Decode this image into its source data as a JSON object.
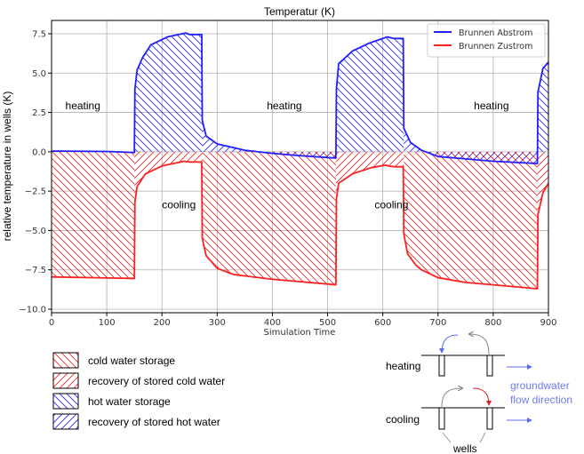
{
  "chart_data": {
    "type": "line",
    "title": "Temperatur (K)",
    "xlabel": "Simulation Time",
    "ylabel": "relative temperature in wells (K)",
    "xlim": [
      0,
      900
    ],
    "ylim": [
      -10,
      8.2
    ],
    "xticks": [
      0,
      100,
      200,
      300,
      400,
      500,
      600,
      700,
      800,
      900
    ],
    "yticks": [
      -10.0,
      -7.5,
      -5.0,
      -2.5,
      0.0,
      2.5,
      5.0,
      7.5
    ],
    "ytick_labels": [
      "−10.0",
      "−7.5",
      "−5.0",
      "−2.5",
      "0.0",
      "2.5",
      "5.0",
      "7.5"
    ],
    "grid": true,
    "legend_position": "top-right",
    "series": [
      {
        "name": "Brunnen Abstrom",
        "color": "#1f1fff",
        "x": [
          0,
          100,
          150,
          151,
          155,
          165,
          180,
          210,
          243,
          250,
          272,
          273,
          280,
          300,
          350,
          400,
          450,
          515,
          516,
          520,
          545,
          575,
          608,
          620,
          637,
          638,
          650,
          670,
          700,
          800,
          880,
          881,
          890,
          900
        ],
        "y": [
          0.05,
          0.02,
          -0.05,
          4.0,
          5.2,
          6.0,
          6.8,
          7.3,
          7.55,
          7.45,
          7.45,
          2.0,
          1.0,
          0.5,
          0.1,
          -0.1,
          -0.25,
          -0.4,
          4.0,
          5.6,
          6.4,
          6.9,
          7.3,
          7.2,
          7.2,
          1.5,
          0.6,
          0.1,
          -0.3,
          -0.6,
          -0.75,
          3.8,
          5.3,
          5.7
        ]
      },
      {
        "name": "Brunnen Zustrom",
        "color": "#ff2020",
        "x": [
          0,
          150,
          151,
          155,
          170,
          200,
          240,
          250,
          272,
          273,
          280,
          300,
          330,
          400,
          450,
          515,
          516,
          520,
          545,
          580,
          605,
          610,
          620,
          637,
          638,
          645,
          660,
          670,
          700,
          750,
          880,
          881,
          890,
          900
        ],
        "y": [
          -7.95,
          -8.05,
          -3.2,
          -2.2,
          -1.4,
          -0.9,
          -0.6,
          -0.65,
          -0.65,
          -5.5,
          -6.6,
          -7.4,
          -7.8,
          -8.1,
          -8.25,
          -8.45,
          -3.0,
          -2.0,
          -1.4,
          -1.0,
          -0.85,
          -0.9,
          -0.95,
          -0.95,
          -5.2,
          -6.5,
          -7.2,
          -7.5,
          -8.0,
          -8.3,
          -8.7,
          -4.0,
          -2.6,
          -2.0
        ]
      }
    ],
    "periods": [
      {
        "label": "heating",
        "start": 0,
        "end": 150
      },
      {
        "label": "cooling",
        "start": 150,
        "end": 273
      },
      {
        "label": "heating",
        "start": 273,
        "end": 515
      },
      {
        "label": "cooling",
        "start": 515,
        "end": 638
      },
      {
        "label": "heating",
        "start": 638,
        "end": 880
      },
      {
        "label": "cooling",
        "start": 880,
        "end": 900
      }
    ],
    "annotations": [
      {
        "text": "heating",
        "x": 25,
        "y": 2.7
      },
      {
        "text": "cooling",
        "x": 200,
        "y": -3.6
      },
      {
        "text": "heating",
        "x": 390,
        "y": 2.7
      },
      {
        "text": "cooling",
        "x": 585,
        "y": -3.6
      },
      {
        "text": "heating",
        "x": 765,
        "y": 2.7
      }
    ]
  },
  "hatch_legend": [
    {
      "label": "cold water storage",
      "color": "#ff2020",
      "hatch": "backslash"
    },
    {
      "label": "recovery of stored cold water",
      "color": "#ff2020",
      "hatch": "slash"
    },
    {
      "label": "hot water storage",
      "color": "#1f1fff",
      "hatch": "backslash"
    },
    {
      "label": "recovery of stored hot water",
      "color": "#1f1fff",
      "hatch": "slash"
    }
  ],
  "diagram": {
    "heating_label": "heating",
    "cooling_label": "cooling",
    "wells_label": "wells",
    "flow_label_1": "groundwater",
    "flow_label_2": "flow direction",
    "flow_color": "#6a7cf0"
  }
}
